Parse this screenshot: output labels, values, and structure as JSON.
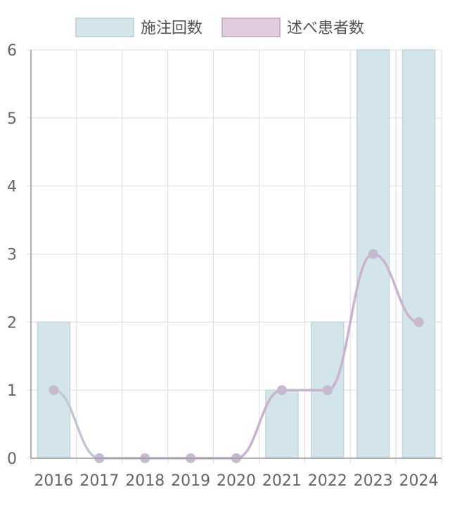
{
  "chart_data": {
    "type": "bar",
    "categories": [
      "2016",
      "2017",
      "2018",
      "2019",
      "2020",
      "2021",
      "2022",
      "2023",
      "2024"
    ],
    "series": [
      {
        "name": "施注回数",
        "type": "bar",
        "values": [
          2,
          0,
          0,
          0,
          0,
          1,
          2,
          6,
          6
        ],
        "color": "#d3e4ea",
        "border": "#c2d6dc"
      },
      {
        "name": "述べ患者数",
        "type": "line",
        "values": [
          1,
          0,
          0,
          0,
          0,
          1,
          1,
          3,
          2
        ],
        "color": "#c9b3cf",
        "gradient_from": "#c2c9d6",
        "gradient_to": "#c9b3cf",
        "point_color": "#c7bad0"
      }
    ],
    "ylim": [
      0,
      6
    ],
    "yticks": [
      0,
      1,
      2,
      3,
      4,
      5,
      6
    ],
    "grid": true,
    "legend": "top-center"
  }
}
